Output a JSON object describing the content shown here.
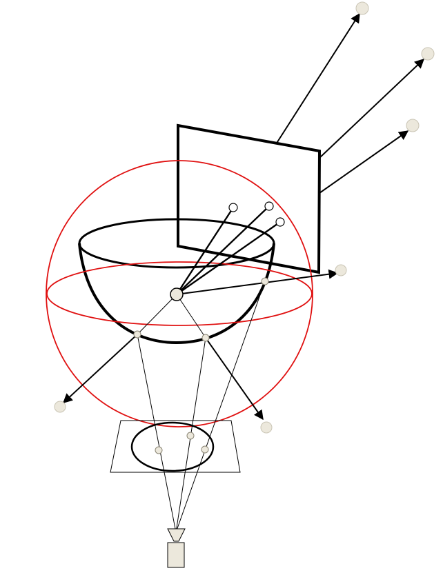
{
  "colors": {
    "background": "#ffffff",
    "line": "#000000",
    "sphere": "#e01010",
    "point_fill": "#ece8dc",
    "point_stroke": "#c9c4b4",
    "camera_fill": "#ece8dc"
  }
}
